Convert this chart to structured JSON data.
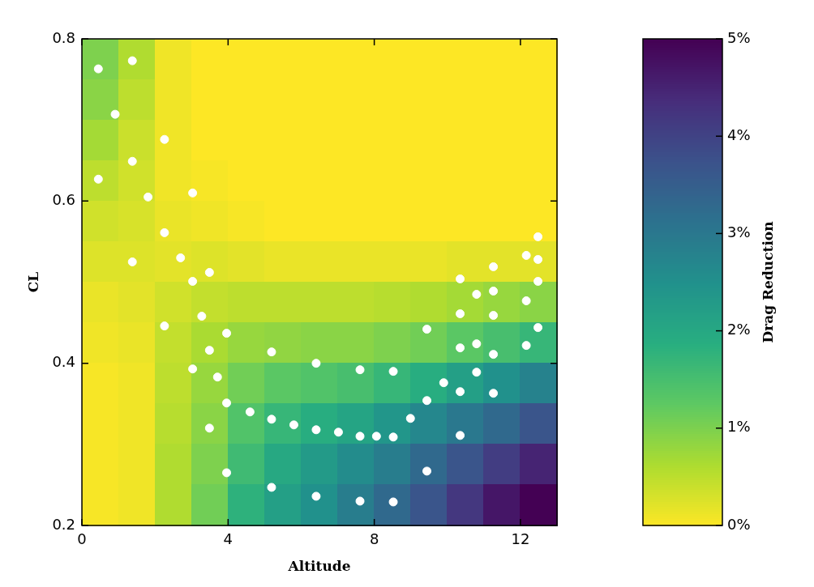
{
  "chart_data": {
    "type": "heatmap",
    "xlabel": "Altitude",
    "ylabel": "CL",
    "clabel": "Drag Reduction",
    "xlim": [
      0,
      13
    ],
    "ylim": [
      0.2,
      0.8
    ],
    "xticks": [
      0,
      4,
      8,
      12
    ],
    "yticks": [
      0.2,
      0.4,
      0.6,
      0.8
    ],
    "clim": [
      0,
      5
    ],
    "cticks": [
      {
        "value": 0,
        "label": "0%"
      },
      {
        "value": 1,
        "label": "1%"
      },
      {
        "value": 2,
        "label": "2%"
      },
      {
        "value": 3,
        "label": "3%"
      },
      {
        "value": 4,
        "label": "4%"
      },
      {
        "value": 5,
        "label": "5%"
      }
    ],
    "marker": "circle",
    "cells": [
      [
        1.0,
        0.6,
        0.1,
        0,
        0,
        0,
        0,
        0,
        0,
        0,
        0,
        0,
        0
      ],
      [
        0.9,
        0.5,
        0.1,
        0,
        0,
        0,
        0,
        0,
        0,
        0,
        0,
        0,
        0
      ],
      [
        0.7,
        0.4,
        0.1,
        0,
        0,
        0,
        0,
        0,
        0,
        0,
        0,
        0,
        0
      ],
      [
        0.5,
        0.35,
        0.1,
        0.05,
        0,
        0,
        0,
        0,
        0,
        0,
        0,
        0,
        0
      ],
      [
        0.35,
        0.3,
        0.15,
        0.1,
        0.05,
        0,
        0,
        0,
        0,
        0,
        0,
        0,
        0
      ],
      [
        0.25,
        0.25,
        0.2,
        0.25,
        0.2,
        0.15,
        0.15,
        0.15,
        0.15,
        0.15,
        0.2,
        0.2,
        0.2
      ],
      [
        0.15,
        0.2,
        0.35,
        0.45,
        0.5,
        0.5,
        0.5,
        0.5,
        0.55,
        0.6,
        0.7,
        0.8,
        0.9
      ],
      [
        0.1,
        0.15,
        0.45,
        0.65,
        0.8,
        0.85,
        0.9,
        0.9,
        1.0,
        1.1,
        1.3,
        1.5,
        1.7
      ],
      [
        0.05,
        0.1,
        0.5,
        0.8,
        1.1,
        1.3,
        1.4,
        1.5,
        1.7,
        1.9,
        2.2,
        2.5,
        2.8
      ],
      [
        0.05,
        0.1,
        0.55,
        0.9,
        1.4,
        1.7,
        1.9,
        2.1,
        2.4,
        2.7,
        3.0,
        3.3,
        3.7
      ],
      [
        0.05,
        0.1,
        0.6,
        1.0,
        1.6,
        2.0,
        2.3,
        2.6,
        2.9,
        3.3,
        3.7,
        4.1,
        4.5
      ],
      [
        0.05,
        0.1,
        0.6,
        1.1,
        1.8,
        2.2,
        2.5,
        2.9,
        3.3,
        3.7,
        4.2,
        4.7,
        5.0
      ]
    ],
    "series": [
      {
        "type": "scatter",
        "color": "#ffffff",
        "x": [
          0.45,
          1.38,
          0.91,
          1.38,
          2.26,
          0.45,
          1.81,
          3.03,
          2.26,
          1.38,
          2.7,
          3.03,
          3.49,
          3.28,
          2.26,
          3.49,
          3.71,
          3.03,
          3.96,
          3.96,
          3.49,
          3.96,
          4.6,
          5.19,
          5.19,
          5.19,
          5.8,
          6.41,
          6.41,
          6.41,
          7.02,
          7.61,
          7.61,
          7.61,
          8.06,
          8.52,
          8.52,
          8.52,
          8.99,
          9.44,
          9.44,
          9.44,
          9.9,
          10.35,
          10.35,
          10.35,
          10.35,
          10.35,
          10.8,
          10.8,
          10.8,
          11.26,
          11.26,
          11.26,
          11.26,
          11.26,
          12.16,
          12.16,
          12.16,
          12.48,
          12.48,
          12.48,
          12.48
        ],
        "values": [
          0.763,
          0.773,
          0.707,
          0.649,
          0.676,
          0.627,
          0.605,
          0.61,
          0.561,
          0.525,
          0.53,
          0.501,
          0.512,
          0.458,
          0.446,
          0.416,
          0.383,
          0.393,
          0.437,
          0.351,
          0.32,
          0.265,
          0.34,
          0.331,
          0.414,
          0.247,
          0.324,
          0.318,
          0.4,
          0.236,
          0.315,
          0.31,
          0.392,
          0.23,
          0.31,
          0.309,
          0.39,
          0.229,
          0.332,
          0.354,
          0.442,
          0.267,
          0.376,
          0.504,
          0.461,
          0.419,
          0.365,
          0.311,
          0.485,
          0.424,
          0.389,
          0.519,
          0.489,
          0.459,
          0.411,
          0.363,
          0.533,
          0.477,
          0.422,
          0.556,
          0.528,
          0.501,
          0.444
        ]
      }
    ]
  }
}
